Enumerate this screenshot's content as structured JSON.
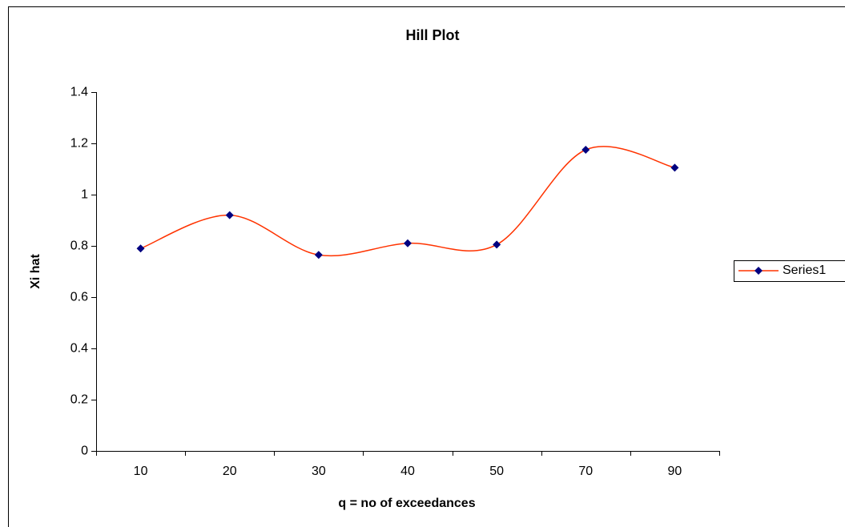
{
  "chart_data": {
    "type": "line",
    "title": "Hill Plot",
    "x_label": "q = no of exceedances",
    "y_label": "Xi hat",
    "categories": [
      "10",
      "20",
      "30",
      "40",
      "50",
      "70",
      "90"
    ],
    "series": [
      {
        "name": "Series1",
        "color": "#ff3300",
        "marker_color": "#000080",
        "values": [
          0.79,
          0.92,
          0.765,
          0.81,
          0.805,
          1.175,
          1.105
        ]
      }
    ],
    "ylim": [
      0,
      1.4
    ],
    "yticks": [
      0,
      0.2,
      0.4,
      0.6,
      0.8,
      1,
      1.2,
      1.4
    ],
    "smooth": true,
    "legend": "right"
  }
}
